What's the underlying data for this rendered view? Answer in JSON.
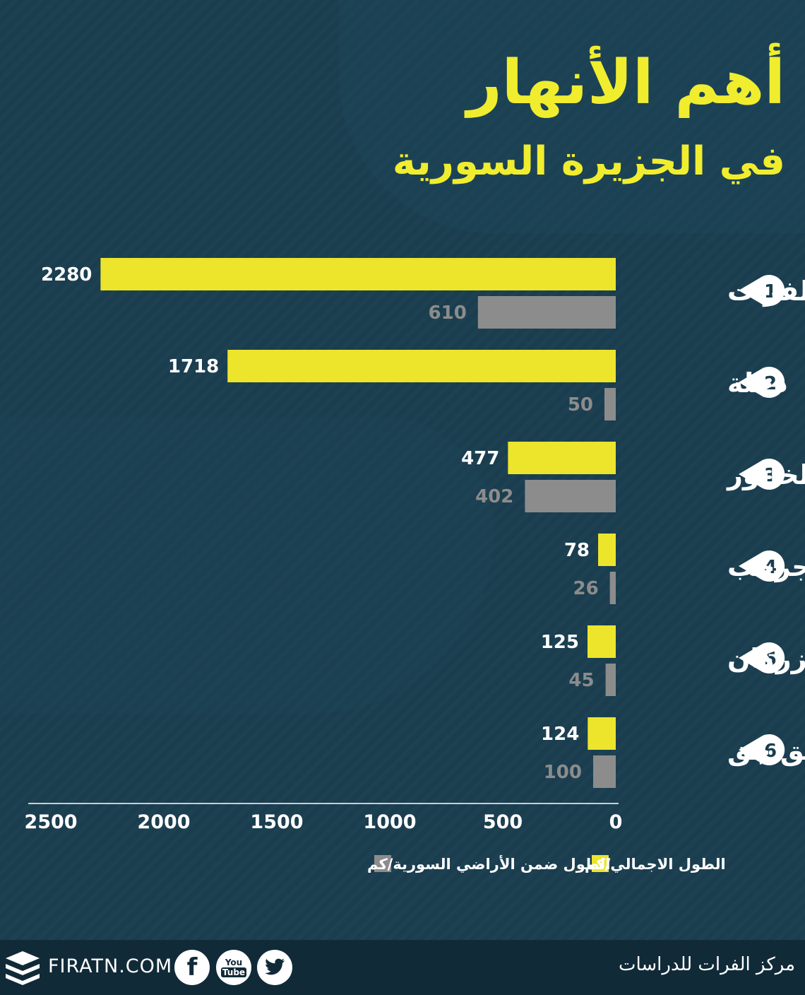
{
  "title": "أهم الأنهار",
  "subtitle": "في الجزيرة السورية",
  "colors": {
    "total": "#ece52c",
    "syria": "#8c8c8c",
    "title": "#f0ed2f",
    "background": "#1a3d4f"
  },
  "chart_data": {
    "type": "bar",
    "orientation": "horizontal",
    "categories": [
      "الفرات",
      "دجلة",
      "الخابور",
      "الجرجب",
      "الزركان",
      "الجق جق"
    ],
    "ranks": [
      "1",
      "2",
      "3",
      "4",
      "5",
      "6"
    ],
    "series": [
      {
        "name": "الطول الاجمالي/كم",
        "values": [
          2280,
          1718,
          477,
          78,
          125,
          124
        ]
      },
      {
        "name": "الطول ضمن الأراضي السورية/كم",
        "values": [
          610,
          50,
          402,
          26,
          45,
          100
        ]
      }
    ],
    "xlim": [
      0,
      2500
    ],
    "xticks": [
      0,
      500,
      1000,
      1500,
      2000,
      2500
    ],
    "x_direction": "right-to-left",
    "grid": false,
    "legend_position": "bottom"
  },
  "footer": {
    "org_name": "مركز الفرات للدراسات",
    "website": "FIRATN.COM",
    "social_icons": [
      "facebook-icon",
      "youtube-icon",
      "twitter-icon"
    ],
    "youtube_top": "You",
    "youtube_bottom": "Tube",
    "facebook_glyph": "f"
  }
}
